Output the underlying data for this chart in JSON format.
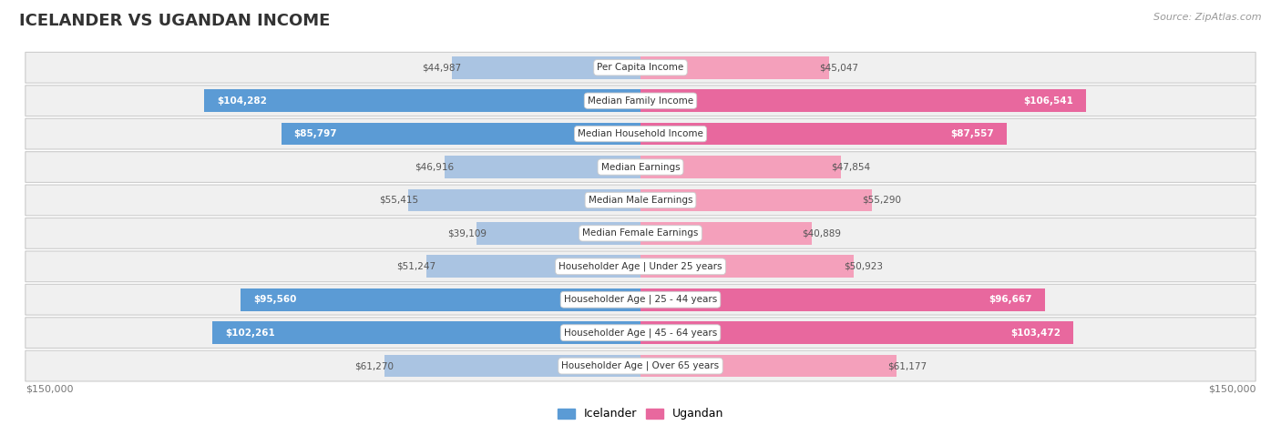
{
  "title": "ICELANDER VS UGANDAN INCOME",
  "source": "Source: ZipAtlas.com",
  "categories": [
    "Per Capita Income",
    "Median Family Income",
    "Median Household Income",
    "Median Earnings",
    "Median Male Earnings",
    "Median Female Earnings",
    "Householder Age | Under 25 years",
    "Householder Age | 25 - 44 years",
    "Householder Age | 45 - 64 years",
    "Householder Age | Over 65 years"
  ],
  "icelander_values": [
    44987,
    104282,
    85797,
    46916,
    55415,
    39109,
    51247,
    95560,
    102261,
    61270
  ],
  "ugandan_values": [
    45047,
    106541,
    87557,
    47854,
    55290,
    40889,
    50923,
    96667,
    103472,
    61177
  ],
  "icelander_labels": [
    "$44,987",
    "$104,282",
    "$85,797",
    "$46,916",
    "$55,415",
    "$39,109",
    "$51,247",
    "$95,560",
    "$102,261",
    "$61,270"
  ],
  "ugandan_labels": [
    "$45,047",
    "$106,541",
    "$87,557",
    "$47,854",
    "$55,290",
    "$40,889",
    "$50,923",
    "$96,667",
    "$103,472",
    "$61,177"
  ],
  "max_value": 150000,
  "icelander_color_light": "#aac4e2",
  "icelander_color_dark": "#5b9bd5",
  "ugandan_color_light": "#f4a0bb",
  "ugandan_color_dark": "#e8689e",
  "label_color_dark": "#ffffff",
  "label_color_light": "#555555",
  "threshold": 80000,
  "bg_color": "#ffffff",
  "row_bg_color": "#f0f0f0",
  "row_border_color": "#cccccc",
  "title_color": "#333333",
  "source_color": "#999999",
  "axis_label_color": "#777777",
  "legend_icelander": "Icelander",
  "legend_ugandan": "Ugandan",
  "title_fontsize": 13,
  "source_fontsize": 8,
  "bar_label_fontsize": 7.5,
  "cat_label_fontsize": 7.5,
  "axis_fontsize": 8,
  "legend_fontsize": 9
}
